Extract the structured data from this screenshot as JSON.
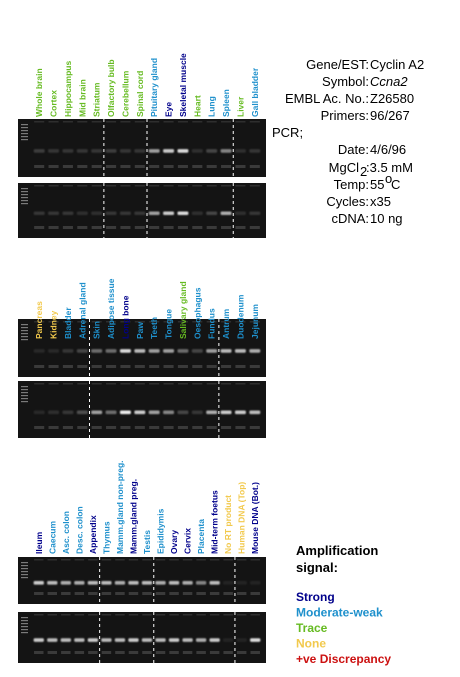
{
  "colors": {
    "strong": "#00008b",
    "moderate": "#1e90cc",
    "trace": "#66bb22",
    "none": "#f2c94c",
    "discrepancy": "#cc1111",
    "black": "#000000",
    "gel_bg": "#141414"
  },
  "info": {
    "gene_key": "Gene/EST:",
    "gene_val": "Cyclin A2",
    "symbol_key": "Symbol:",
    "symbol_val": "Ccna2",
    "embl_key": "EMBL Ac. No.:",
    "embl_val": "Z26580",
    "primers_key": "Primers:",
    "primers_val": "96/267",
    "pcr_key": "PCR;",
    "date_key": "Date:",
    "date_val": "4/6/96",
    "mgcl_key": "MgCl",
    "mgcl_sub": "2",
    "mgcl_val": ":3.5 mM",
    "temp_key": "Temp:",
    "temp_val": "55",
    "temp_sup": "o",
    "temp_unit": "C",
    "cycles_key": "Cycles:",
    "cycles_val": "x35",
    "cdna_key": "cDNA:",
    "cdna_val": "10 ng"
  },
  "legend": {
    "title_line1": "Amplification",
    "title_line2": "signal:",
    "items": [
      {
        "label": "Strong",
        "level": "strong"
      },
      {
        "label": "Moderate-weak",
        "level": "moderate"
      },
      {
        "label": "Trace",
        "level": "trace"
      },
      {
        "label": "None",
        "level": "none"
      },
      {
        "label": "+ve Discrepancy",
        "level": "discrepancy"
      }
    ]
  },
  "panels": [
    {
      "dividers_after": [
        4,
        7,
        13
      ],
      "lanes": [
        {
          "label": "Whole brain",
          "level": "trace",
          "bands": [
            0.25,
            0.2
          ]
        },
        {
          "label": "Cortex",
          "level": "trace",
          "bands": [
            0.2,
            0.2
          ]
        },
        {
          "label": "Hippocampus",
          "level": "trace",
          "bands": [
            0.2,
            0.2
          ]
        },
        {
          "label": "Mid brain",
          "level": "trace",
          "bands": [
            0.2,
            0.15
          ]
        },
        {
          "label": "Striatum",
          "level": "trace",
          "bands": [
            0.2,
            0.15
          ]
        },
        {
          "label": "Olfactory bulb",
          "level": "trace",
          "bands": [
            0.25,
            0.2
          ]
        },
        {
          "label": "Cerebellum",
          "level": "trace",
          "bands": [
            0.2,
            0.2
          ]
        },
        {
          "label": "Spinal cord",
          "level": "trace",
          "bands": [
            0.2,
            0.2
          ]
        },
        {
          "label": "Pituitary gland",
          "level": "moderate",
          "bands": [
            0.7,
            0.7
          ]
        },
        {
          "label": "Eye",
          "level": "strong",
          "bands": [
            0.85,
            0.85
          ]
        },
        {
          "label": "Skeletal muscle",
          "level": "strong",
          "bands": [
            0.9,
            0.9
          ]
        },
        {
          "label": "Heart",
          "level": "trace",
          "bands": [
            0.15,
            0.15
          ]
        },
        {
          "label": "Lung",
          "level": "moderate",
          "bands": [
            0.3,
            0.3
          ]
        },
        {
          "label": "Spleen",
          "level": "moderate",
          "bands": [
            0.6,
            0.75
          ]
        },
        {
          "label": "Liver",
          "level": "trace",
          "bands": [
            0.15,
            0.15
          ]
        },
        {
          "label": "Gall bladder",
          "level": "moderate",
          "bands": [
            0.2,
            0.2
          ]
        }
      ]
    },
    {
      "dividers_after": [
        3,
        12
      ],
      "lanes": [
        {
          "label": "Pancreas",
          "level": "none",
          "bands": [
            0.1,
            0.1
          ]
        },
        {
          "label": "Kidney",
          "level": "none",
          "bands": [
            0.1,
            0.15
          ]
        },
        {
          "label": "Bladder",
          "level": "moderate",
          "bands": [
            0.2,
            0.2
          ]
        },
        {
          "label": "Adrenal gland",
          "level": "moderate",
          "bands": [
            0.3,
            0.35
          ]
        },
        {
          "label": "Skin",
          "level": "moderate",
          "bands": [
            0.5,
            0.7
          ]
        },
        {
          "label": "Adipose tissue",
          "level": "moderate",
          "bands": [
            0.5,
            0.5
          ]
        },
        {
          "label": "Long bone",
          "level": "strong",
          "bands": [
            0.9,
            0.95
          ]
        },
        {
          "label": "Paw",
          "level": "moderate",
          "bands": [
            0.8,
            0.85
          ]
        },
        {
          "label": "Teeth",
          "level": "moderate",
          "bands": [
            0.7,
            0.7
          ]
        },
        {
          "label": "Tongue",
          "level": "moderate",
          "bands": [
            0.7,
            0.6
          ]
        },
        {
          "label": "Salivary gland",
          "level": "trace",
          "bands": [
            0.5,
            0.3
          ]
        },
        {
          "label": "Oesophagus",
          "level": "moderate",
          "bands": [
            0.3,
            0.2
          ]
        },
        {
          "label": "Fundus",
          "level": "moderate",
          "bands": [
            0.7,
            0.75
          ]
        },
        {
          "label": "Antrum",
          "level": "moderate",
          "bands": [
            0.8,
            0.85
          ]
        },
        {
          "label": "Duodenum",
          "level": "moderate",
          "bands": [
            0.8,
            0.85
          ]
        },
        {
          "label": "Jejunum",
          "level": "moderate",
          "bands": [
            0.75,
            0.8
          ]
        }
      ]
    },
    {
      "dividers_after": [
        4,
        8,
        14
      ],
      "lanes": [
        {
          "label": "Ileum",
          "level": "strong",
          "bands": [
            0.85,
            0.85
          ]
        },
        {
          "label": "Caecum",
          "level": "moderate",
          "bands": [
            0.8,
            0.8
          ]
        },
        {
          "label": "Asc. colon",
          "level": "moderate",
          "bands": [
            0.75,
            0.8
          ]
        },
        {
          "label": "Desc. colon",
          "level": "moderate",
          "bands": [
            0.75,
            0.8
          ]
        },
        {
          "label": "Appendix",
          "level": "strong",
          "bands": [
            0.8,
            0.85
          ]
        },
        {
          "label": "Thymus",
          "level": "moderate",
          "bands": [
            0.8,
            0.8
          ]
        },
        {
          "label": "Mamm.gland non-preg.",
          "level": "moderate",
          "bands": [
            0.75,
            0.8
          ]
        },
        {
          "label": "Mamm.gland preg.",
          "level": "strong",
          "bands": [
            0.8,
            0.85
          ]
        },
        {
          "label": "Testis",
          "level": "moderate",
          "bands": [
            0.8,
            0.8
          ]
        },
        {
          "label": "Epididymis",
          "level": "moderate",
          "bands": [
            0.75,
            0.8
          ]
        },
        {
          "label": "Ovary",
          "level": "strong",
          "bands": [
            0.8,
            0.85
          ]
        },
        {
          "label": "Cervix",
          "level": "strong",
          "bands": [
            0.75,
            0.8
          ]
        },
        {
          "label": "Placenta",
          "level": "moderate",
          "bands": [
            0.6,
            0.75
          ]
        },
        {
          "label": "Mid-term foetus",
          "level": "strong",
          "bands": [
            0.8,
            0.85
          ]
        },
        {
          "label": "No RT product",
          "level": "none",
          "bands": [
            0.05,
            0.05
          ]
        },
        {
          "label": "Human DNA (Top)",
          "level": "none",
          "bands": [
            0.05,
            0.05
          ]
        },
        {
          "label": "Mouse DNA (Bot.)",
          "level": "strong",
          "bands": [
            0.05,
            0.9
          ]
        }
      ]
    }
  ]
}
